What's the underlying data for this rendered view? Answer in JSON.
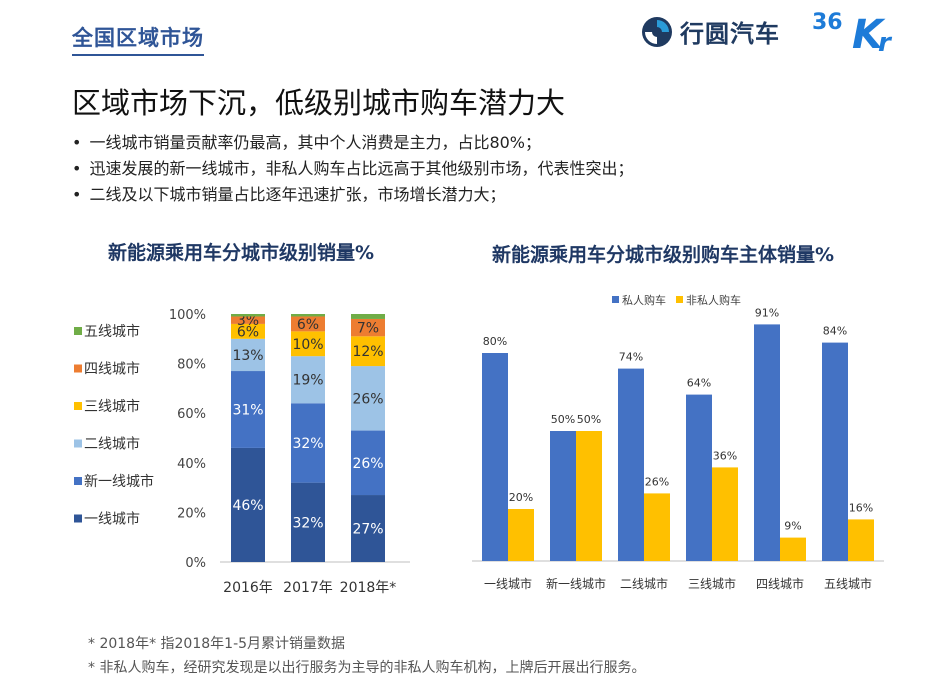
{
  "header": {
    "section_title": "全国区域市场",
    "brand_name": "行圆汽车",
    "partner_logo": "36Kr"
  },
  "headline": "区域市场下沉，低级别城市购车潜力大",
  "bullets": [
    "一线城市销量贡献率仍最高，其中个人消费是主力，占比80%；",
    "迅速发展的新一线城市，非私人购车占比远高于其他级别市场，代表性突出；",
    "二线及以下城市销量占比逐年迅速扩张，市场增长潜力大；"
  ],
  "footnotes": [
    "* 2018年* 指2018年1-5月累计销量数据",
    "* 非私人购车，经研究发现是以出行服务为主导的非私人购车机构，上牌后开展出行服务。"
  ],
  "chart_data": [
    {
      "type": "bar",
      "stacked": true,
      "title": "新能源乘用车分城市级别销量%",
      "categories": [
        "2016年",
        "2017年",
        "2018年*"
      ],
      "y_ticks": [
        "0%",
        "20%",
        "40%",
        "60%",
        "80%",
        "100%"
      ],
      "ylim": [
        0,
        100
      ],
      "legend_position": "left",
      "series": [
        {
          "name": "一线城市",
          "color": "#2f5597",
          "values": [
            46,
            32,
            27
          ],
          "labels": [
            "46%",
            "32%",
            "27%"
          ]
        },
        {
          "name": "新一线城市",
          "color": "#4472c4",
          "values": [
            31,
            32,
            26
          ],
          "labels": [
            "31%",
            "32%",
            "26%"
          ]
        },
        {
          "name": "二线城市",
          "color": "#9dc3e6",
          "values": [
            13,
            19,
            26
          ],
          "labels": [
            "13%",
            "19%",
            "26%"
          ]
        },
        {
          "name": "三线城市",
          "color": "#ffc000",
          "values": [
            6,
            10,
            12
          ],
          "labels": [
            "6%",
            "10%",
            "12%"
          ]
        },
        {
          "name": "四线城市",
          "color": "#ed7d31",
          "values": [
            3,
            6,
            7
          ],
          "labels": [
            "3%",
            "6%",
            "7%"
          ]
        },
        {
          "name": "五线城市",
          "color": "#70ad47",
          "values": [
            1,
            1,
            2
          ],
          "labels": [
            "",
            "",
            ""
          ]
        }
      ]
    },
    {
      "type": "bar",
      "stacked": false,
      "title": "新能源乘用车分城市级别购车主体销量%",
      "categories": [
        "一线城市",
        "新一线城市",
        "二线城市",
        "三线城市",
        "四线城市",
        "五线城市"
      ],
      "ylim": [
        0,
        100
      ],
      "legend_position": "top",
      "series": [
        {
          "name": "私人购车",
          "color": "#4472c4",
          "values": [
            80,
            50,
            74,
            64,
            91,
            84
          ],
          "labels": [
            "80%",
            "50%",
            "74%",
            "64%",
            "91%",
            "84%"
          ]
        },
        {
          "name": "非私人购车",
          "color": "#ffc000",
          "values": [
            20,
            50,
            26,
            36,
            9,
            16
          ],
          "labels": [
            "20%",
            "50%",
            "26%",
            "36%",
            "9%",
            "16%"
          ]
        }
      ]
    }
  ]
}
